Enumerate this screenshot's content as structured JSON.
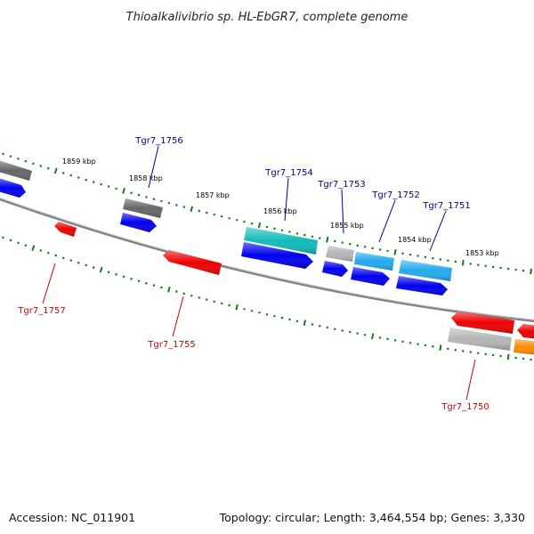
{
  "title": "Thioalkalivibrio sp. HL-EbGR7, complete genome",
  "footer": {
    "accession": "Accession: NC_011901",
    "summary": "Topology: circular; Length: 3,464,554 bp; Genes: 3,330"
  },
  "colors": {
    "backbone": "#808080",
    "ticks": "#1a7a1a",
    "label_forward": "#00008b",
    "label_reverse": "#cc0000",
    "gene_blue": "#0000ee",
    "gene_red": "#ee0000",
    "gene_cyan": "#11bbbb",
    "gene_skyblue": "#22aaee",
    "gene_darkgray": "#666666",
    "gene_lightgray": "#b5b5b5",
    "gene_orange": "#ff8c00"
  },
  "scale_labels": [
    "1859 kbp",
    "1858 kbp",
    "1857 kbp",
    "1856 kbp",
    "1855 kbp",
    "1854 kbp",
    "1853 kbp"
  ],
  "gene_labels": [
    {
      "text": "Tgr7_1756",
      "strand": "forward"
    },
    {
      "text": "Tgr7_1754",
      "strand": "forward"
    },
    {
      "text": "Tgr7_1753",
      "strand": "forward"
    },
    {
      "text": "Tgr7_1752",
      "strand": "forward"
    },
    {
      "text": "Tgr7_1751",
      "strand": "forward"
    },
    {
      "text": "Tgr7_1757",
      "strand": "reverse"
    },
    {
      "text": "Tgr7_1755",
      "strand": "reverse"
    },
    {
      "text": "Tgr7_1750",
      "strand": "reverse"
    }
  ]
}
